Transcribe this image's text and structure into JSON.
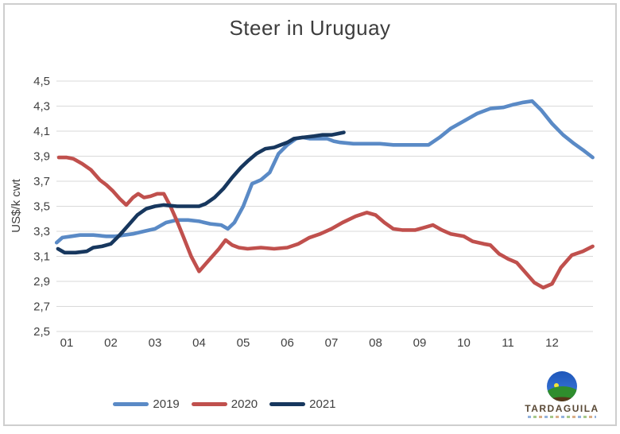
{
  "page": {
    "background": "#ffffff",
    "frame_border_color": "#cecece"
  },
  "chart_data": {
    "type": "line",
    "title": "Steer in Uruguay",
    "xlabel": "",
    "ylabel": "US$/k cwt",
    "ylim": [
      2.5,
      4.5
    ],
    "ytick_step": 0.2,
    "ytick_labels": [
      "4,5",
      "4,3",
      "4,1",
      "3,9",
      "3,7",
      "3,5",
      "3,3",
      "3,1",
      "2,9",
      "2,7",
      "2,5"
    ],
    "x_categories": [
      "01",
      "02",
      "03",
      "04",
      "05",
      "06",
      "07",
      "08",
      "09",
      "10",
      "11",
      "12"
    ],
    "grid": true,
    "gridline_color": "#d9d9d9",
    "axis_text_color": "#404040",
    "legend_position": "bottom",
    "x_unit": "month",
    "series": [
      {
        "name": "2019",
        "color": "#5A8AC6",
        "points": [
          [
            0.77,
            3.21
          ],
          [
            0.9,
            3.25
          ],
          [
            1.1,
            3.26
          ],
          [
            1.3,
            3.27
          ],
          [
            1.6,
            3.27
          ],
          [
            1.9,
            3.26
          ],
          [
            2.1,
            3.26
          ],
          [
            2.3,
            3.27
          ],
          [
            2.5,
            3.28
          ],
          [
            2.75,
            3.3
          ],
          [
            3.0,
            3.32
          ],
          [
            3.25,
            3.37
          ],
          [
            3.5,
            3.39
          ],
          [
            3.75,
            3.39
          ],
          [
            4.0,
            3.38
          ],
          [
            4.25,
            3.36
          ],
          [
            4.5,
            3.35
          ],
          [
            4.65,
            3.32
          ],
          [
            4.8,
            3.37
          ],
          [
            5.0,
            3.5
          ],
          [
            5.2,
            3.68
          ],
          [
            5.4,
            3.71
          ],
          [
            5.6,
            3.77
          ],
          [
            5.8,
            3.92
          ],
          [
            6.0,
            3.99
          ],
          [
            6.2,
            4.04
          ],
          [
            6.35,
            4.05
          ],
          [
            6.5,
            4.04
          ],
          [
            6.7,
            4.04
          ],
          [
            6.9,
            4.04
          ],
          [
            7.05,
            4.02
          ],
          [
            7.2,
            4.01
          ],
          [
            7.5,
            4.0
          ],
          [
            7.8,
            4.0
          ],
          [
            8.1,
            4.0
          ],
          [
            8.4,
            3.99
          ],
          [
            8.7,
            3.99
          ],
          [
            9.0,
            3.99
          ],
          [
            9.2,
            3.99
          ],
          [
            9.45,
            4.05
          ],
          [
            9.7,
            4.12
          ],
          [
            10.0,
            4.18
          ],
          [
            10.3,
            4.24
          ],
          [
            10.6,
            4.28
          ],
          [
            10.9,
            4.29
          ],
          [
            11.1,
            4.31
          ],
          [
            11.35,
            4.33
          ],
          [
            11.55,
            4.34
          ],
          [
            11.75,
            4.27
          ],
          [
            12.0,
            4.16
          ],
          [
            12.25,
            4.07
          ],
          [
            12.5,
            4.0
          ],
          [
            12.7,
            3.95
          ],
          [
            12.92,
            3.89
          ]
        ]
      },
      {
        "name": "2020",
        "color": "#C0504D",
        "points": [
          [
            0.82,
            3.89
          ],
          [
            1.0,
            3.89
          ],
          [
            1.15,
            3.88
          ],
          [
            1.35,
            3.84
          ],
          [
            1.55,
            3.79
          ],
          [
            1.75,
            3.71
          ],
          [
            1.9,
            3.67
          ],
          [
            2.05,
            3.62
          ],
          [
            2.2,
            3.56
          ],
          [
            2.35,
            3.51
          ],
          [
            2.5,
            3.57
          ],
          [
            2.62,
            3.6
          ],
          [
            2.75,
            3.57
          ],
          [
            2.9,
            3.58
          ],
          [
            3.05,
            3.6
          ],
          [
            3.2,
            3.6
          ],
          [
            3.35,
            3.5
          ],
          [
            3.5,
            3.38
          ],
          [
            3.65,
            3.25
          ],
          [
            3.82,
            3.1
          ],
          [
            4.0,
            2.98
          ],
          [
            4.15,
            3.04
          ],
          [
            4.3,
            3.1
          ],
          [
            4.45,
            3.16
          ],
          [
            4.6,
            3.23
          ],
          [
            4.75,
            3.19
          ],
          [
            4.9,
            3.17
          ],
          [
            5.1,
            3.16
          ],
          [
            5.4,
            3.17
          ],
          [
            5.7,
            3.16
          ],
          [
            6.0,
            3.17
          ],
          [
            6.25,
            3.2
          ],
          [
            6.5,
            3.25
          ],
          [
            6.75,
            3.28
          ],
          [
            7.0,
            3.32
          ],
          [
            7.25,
            3.37
          ],
          [
            7.55,
            3.42
          ],
          [
            7.8,
            3.45
          ],
          [
            8.0,
            3.43
          ],
          [
            8.2,
            3.37
          ],
          [
            8.4,
            3.32
          ],
          [
            8.6,
            3.31
          ],
          [
            8.9,
            3.31
          ],
          [
            9.1,
            3.33
          ],
          [
            9.3,
            3.35
          ],
          [
            9.5,
            3.31
          ],
          [
            9.7,
            3.28
          ],
          [
            10.0,
            3.26
          ],
          [
            10.2,
            3.22
          ],
          [
            10.45,
            3.2
          ],
          [
            10.6,
            3.19
          ],
          [
            10.8,
            3.12
          ],
          [
            11.0,
            3.08
          ],
          [
            11.2,
            3.05
          ],
          [
            11.4,
            2.97
          ],
          [
            11.6,
            2.89
          ],
          [
            11.8,
            2.85
          ],
          [
            12.0,
            2.88
          ],
          [
            12.2,
            3.01
          ],
          [
            12.45,
            3.11
          ],
          [
            12.7,
            3.14
          ],
          [
            12.92,
            3.18
          ]
        ]
      },
      {
        "name": "2021",
        "color": "#17375E",
        "points": [
          [
            0.8,
            3.16
          ],
          [
            0.95,
            3.13
          ],
          [
            1.2,
            3.13
          ],
          [
            1.45,
            3.14
          ],
          [
            1.6,
            3.17
          ],
          [
            1.8,
            3.18
          ],
          [
            2.0,
            3.2
          ],
          [
            2.2,
            3.27
          ],
          [
            2.4,
            3.35
          ],
          [
            2.6,
            3.43
          ],
          [
            2.8,
            3.48
          ],
          [
            3.0,
            3.5
          ],
          [
            3.2,
            3.51
          ],
          [
            3.5,
            3.5
          ],
          [
            3.75,
            3.5
          ],
          [
            4.0,
            3.5
          ],
          [
            4.15,
            3.52
          ],
          [
            4.35,
            3.57
          ],
          [
            4.55,
            3.64
          ],
          [
            4.75,
            3.73
          ],
          [
            4.95,
            3.81
          ],
          [
            5.1,
            3.86
          ],
          [
            5.3,
            3.92
          ],
          [
            5.5,
            3.96
          ],
          [
            5.7,
            3.97
          ],
          [
            5.85,
            3.99
          ],
          [
            6.0,
            4.01
          ],
          [
            6.15,
            4.04
          ],
          [
            6.35,
            4.05
          ],
          [
            6.6,
            4.06
          ],
          [
            6.8,
            4.07
          ],
          [
            7.0,
            4.07
          ],
          [
            7.15,
            4.08
          ],
          [
            7.28,
            4.09
          ]
        ]
      }
    ]
  },
  "legend": {
    "items": [
      {
        "label": "2019"
      },
      {
        "label": "2020"
      },
      {
        "label": "2021"
      }
    ]
  },
  "logo": {
    "name": "TARDAGUILA"
  }
}
